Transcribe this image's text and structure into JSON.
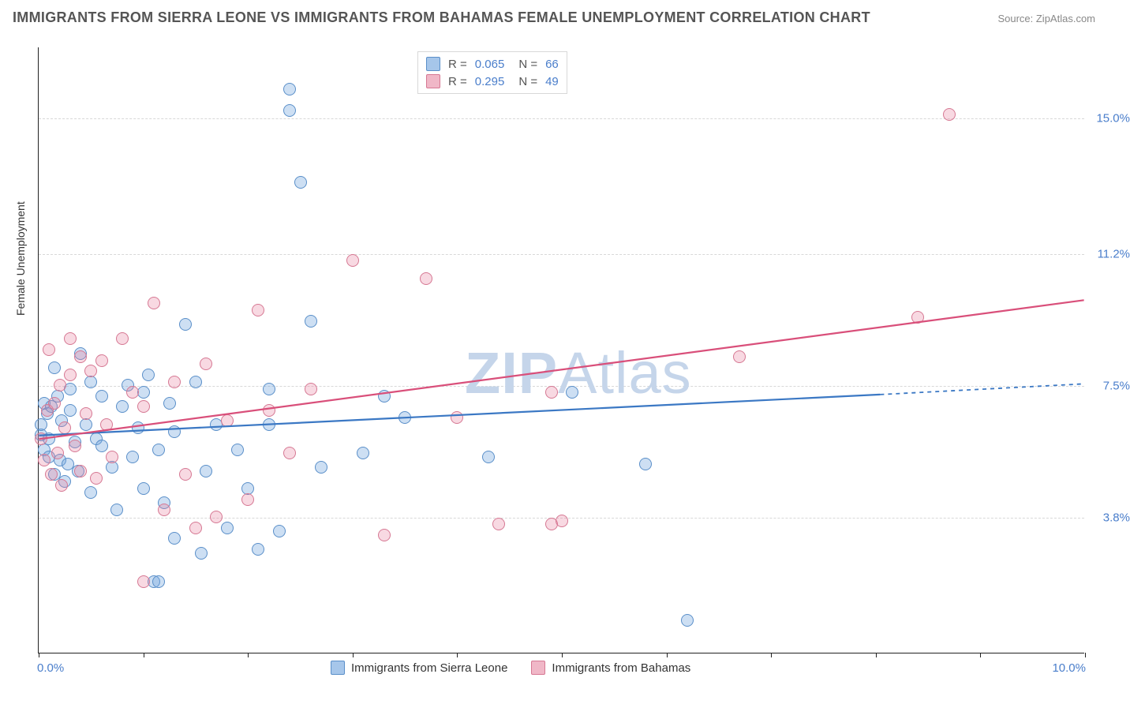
{
  "title": "IMMIGRANTS FROM SIERRA LEONE VS IMMIGRANTS FROM BAHAMAS FEMALE UNEMPLOYMENT CORRELATION CHART",
  "source": "Source: ZipAtlas.com",
  "y_axis_title": "Female Unemployment",
  "watermark": {
    "bold": "ZIP",
    "rest": "Atlas"
  },
  "chart": {
    "type": "scatter",
    "xlim": [
      0,
      10.0
    ],
    "ylim": [
      0,
      17.0
    ],
    "x_ticks": [
      0,
      1,
      2,
      3,
      4,
      5,
      6,
      7,
      8,
      9,
      10
    ],
    "x_tick_labels": {
      "0": "0.0%",
      "10": "10.0%"
    },
    "y_gridlines": [
      3.8,
      7.5,
      11.2,
      15.0
    ],
    "y_tick_labels": [
      "3.8%",
      "7.5%",
      "11.2%",
      "15.0%"
    ],
    "background_color": "#ffffff",
    "grid_color": "#d8d8d8",
    "axis_label_color": "#4a7ecb",
    "tick_label_color": "#4a7ecb",
    "marker_size": 16,
    "marker_opacity": 0.35,
    "series": [
      {
        "name": "Immigrants from Sierra Leone",
        "key": "sl",
        "fill_color": "#71a3dd",
        "line_color": "#3b78c4",
        "border_color": "#5a8fc9",
        "r": 0.065,
        "n": 66,
        "trend": {
          "x1": 0,
          "y1": 6.1,
          "x2": 8.05,
          "y2": 7.25,
          "dash_x2": 10.0,
          "dash_y2": 7.55
        },
        "points": [
          [
            0.02,
            6.1
          ],
          [
            0.02,
            6.4
          ],
          [
            0.05,
            5.7
          ],
          [
            0.05,
            7.0
          ],
          [
            0.08,
            6.7
          ],
          [
            0.1,
            5.5
          ],
          [
            0.1,
            6.0
          ],
          [
            0.12,
            6.9
          ],
          [
            0.15,
            5.0
          ],
          [
            0.15,
            8.0
          ],
          [
            0.18,
            7.2
          ],
          [
            0.2,
            5.4
          ],
          [
            0.22,
            6.5
          ],
          [
            0.25,
            4.8
          ],
          [
            0.28,
            5.3
          ],
          [
            0.3,
            7.4
          ],
          [
            0.3,
            6.8
          ],
          [
            0.35,
            5.9
          ],
          [
            0.38,
            5.1
          ],
          [
            0.4,
            8.4
          ],
          [
            0.45,
            6.4
          ],
          [
            0.5,
            7.6
          ],
          [
            0.5,
            4.5
          ],
          [
            0.55,
            6.0
          ],
          [
            0.6,
            5.8
          ],
          [
            0.6,
            7.2
          ],
          [
            0.7,
            5.2
          ],
          [
            0.75,
            4.0
          ],
          [
            0.8,
            6.9
          ],
          [
            0.85,
            7.5
          ],
          [
            0.9,
            5.5
          ],
          [
            0.95,
            6.3
          ],
          [
            1.0,
            7.3
          ],
          [
            1.0,
            4.6
          ],
          [
            1.05,
            7.8
          ],
          [
            1.1,
            2.0
          ],
          [
            1.15,
            5.7
          ],
          [
            1.15,
            2.0
          ],
          [
            1.2,
            4.2
          ],
          [
            1.25,
            7.0
          ],
          [
            1.3,
            6.2
          ],
          [
            1.3,
            3.2
          ],
          [
            1.4,
            9.2
          ],
          [
            1.5,
            7.6
          ],
          [
            1.55,
            2.8
          ],
          [
            1.6,
            5.1
          ],
          [
            1.7,
            6.4
          ],
          [
            1.8,
            3.5
          ],
          [
            1.9,
            5.7
          ],
          [
            2.0,
            4.6
          ],
          [
            2.1,
            2.9
          ],
          [
            2.2,
            7.4
          ],
          [
            2.2,
            6.4
          ],
          [
            2.3,
            3.4
          ],
          [
            2.4,
            15.8
          ],
          [
            2.4,
            15.2
          ],
          [
            2.5,
            13.2
          ],
          [
            2.6,
            9.3
          ],
          [
            2.7,
            5.2
          ],
          [
            3.1,
            5.6
          ],
          [
            3.3,
            7.2
          ],
          [
            3.5,
            6.6
          ],
          [
            4.3,
            5.5
          ],
          [
            5.1,
            7.3
          ],
          [
            5.8,
            5.3
          ],
          [
            6.2,
            0.9
          ]
        ]
      },
      {
        "name": "Immigrants from Bahamas",
        "key": "ba",
        "fill_color": "#e882a0",
        "line_color": "#d94f7a",
        "border_color": "#d67893",
        "r": 0.295,
        "n": 49,
        "trend": {
          "x1": 0,
          "y1": 6.0,
          "x2": 10.0,
          "y2": 9.9
        },
        "points": [
          [
            0.02,
            6.0
          ],
          [
            0.05,
            5.4
          ],
          [
            0.08,
            6.8
          ],
          [
            0.1,
            8.5
          ],
          [
            0.12,
            5.0
          ],
          [
            0.15,
            7.0
          ],
          [
            0.18,
            5.6
          ],
          [
            0.2,
            7.5
          ],
          [
            0.22,
            4.7
          ],
          [
            0.25,
            6.3
          ],
          [
            0.3,
            7.8
          ],
          [
            0.3,
            8.8
          ],
          [
            0.35,
            5.8
          ],
          [
            0.4,
            8.3
          ],
          [
            0.4,
            5.1
          ],
          [
            0.45,
            6.7
          ],
          [
            0.5,
            7.9
          ],
          [
            0.55,
            4.9
          ],
          [
            0.6,
            8.2
          ],
          [
            0.65,
            6.4
          ],
          [
            0.7,
            5.5
          ],
          [
            0.8,
            8.8
          ],
          [
            0.9,
            7.3
          ],
          [
            1.0,
            6.9
          ],
          [
            1.0,
            2.0
          ],
          [
            1.1,
            9.8
          ],
          [
            1.2,
            4.0
          ],
          [
            1.3,
            7.6
          ],
          [
            1.4,
            5.0
          ],
          [
            1.5,
            3.5
          ],
          [
            1.6,
            8.1
          ],
          [
            1.7,
            3.8
          ],
          [
            1.8,
            6.5
          ],
          [
            2.0,
            4.3
          ],
          [
            2.1,
            9.6
          ],
          [
            2.2,
            6.8
          ],
          [
            2.4,
            5.6
          ],
          [
            2.6,
            7.4
          ],
          [
            3.0,
            11.0
          ],
          [
            3.3,
            3.3
          ],
          [
            3.7,
            10.5
          ],
          [
            4.0,
            6.6
          ],
          [
            4.4,
            3.6
          ],
          [
            4.9,
            7.3
          ],
          [
            4.9,
            3.6
          ],
          [
            5.0,
            3.7
          ],
          [
            6.7,
            8.3
          ],
          [
            8.4,
            9.4
          ],
          [
            8.7,
            15.1
          ]
        ]
      }
    ],
    "legend_top": [
      {
        "swatch": "#a6c6ea",
        "border": "#5a8fc9",
        "r": "0.065",
        "n": "66"
      },
      {
        "swatch": "#f0b7c7",
        "border": "#d67893",
        "r": "0.295",
        "n": "49"
      }
    ],
    "legend_bottom": [
      {
        "swatch": "#a6c6ea",
        "border": "#5a8fc9",
        "label": "Immigrants from Sierra Leone"
      },
      {
        "swatch": "#f0b7c7",
        "border": "#d67893",
        "label": "Immigrants from Bahamas"
      }
    ]
  }
}
